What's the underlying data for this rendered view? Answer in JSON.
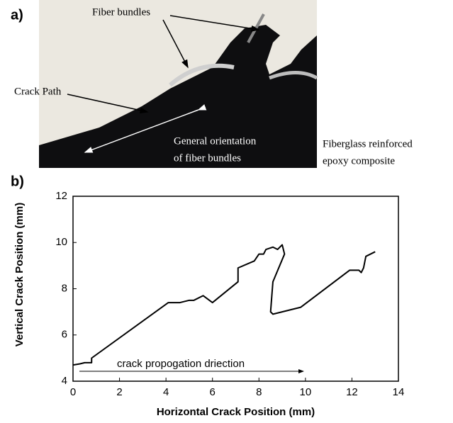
{
  "figure_a": {
    "label": "a)",
    "fiber_bundles": "Fiber bundles",
    "crack_path": "Crack Path",
    "orientation": [
      "General orientation",
      "of fiber bundles"
    ],
    "material": [
      "Fiberglass reinforced",
      "epoxy composite"
    ]
  },
  "chart_data": {
    "type": "line",
    "panel_label": "b)",
    "x_label": "Horizontal Crack Position (mm)",
    "y_label": "Vertical Crack Position (mm)",
    "annotation": "crack propogation driection",
    "xlim": [
      0,
      14
    ],
    "ylim": [
      4,
      12
    ],
    "xticks": [
      0,
      2,
      4,
      6,
      8,
      10,
      12,
      14
    ],
    "yticks": [
      4,
      6,
      8,
      10,
      12
    ],
    "grid": false,
    "series": [
      {
        "color": "#000000",
        "x": [
          0,
          0.3,
          0.5,
          0.8,
          0.8,
          4.1,
          4.6,
          5.0,
          5.2,
          5.6,
          6.0,
          7.1,
          7.1,
          7.8,
          8.0,
          8.2,
          8.3,
          8.6,
          8.8,
          9.0,
          9.1,
          8.6,
          8.5,
          8.6,
          9.8,
          11.9,
          12.3,
          12.4,
          12.5,
          12.6,
          13.0
        ],
        "values": [
          4.7,
          4.75,
          4.8,
          4.8,
          5.0,
          7.4,
          7.4,
          7.5,
          7.5,
          7.7,
          7.4,
          8.3,
          8.9,
          9.2,
          9.5,
          9.5,
          9.7,
          9.8,
          9.7,
          9.9,
          9.5,
          8.3,
          7.0,
          6.9,
          7.2,
          8.8,
          8.8,
          8.7,
          8.9,
          9.4,
          9.6
        ]
      }
    ]
  }
}
